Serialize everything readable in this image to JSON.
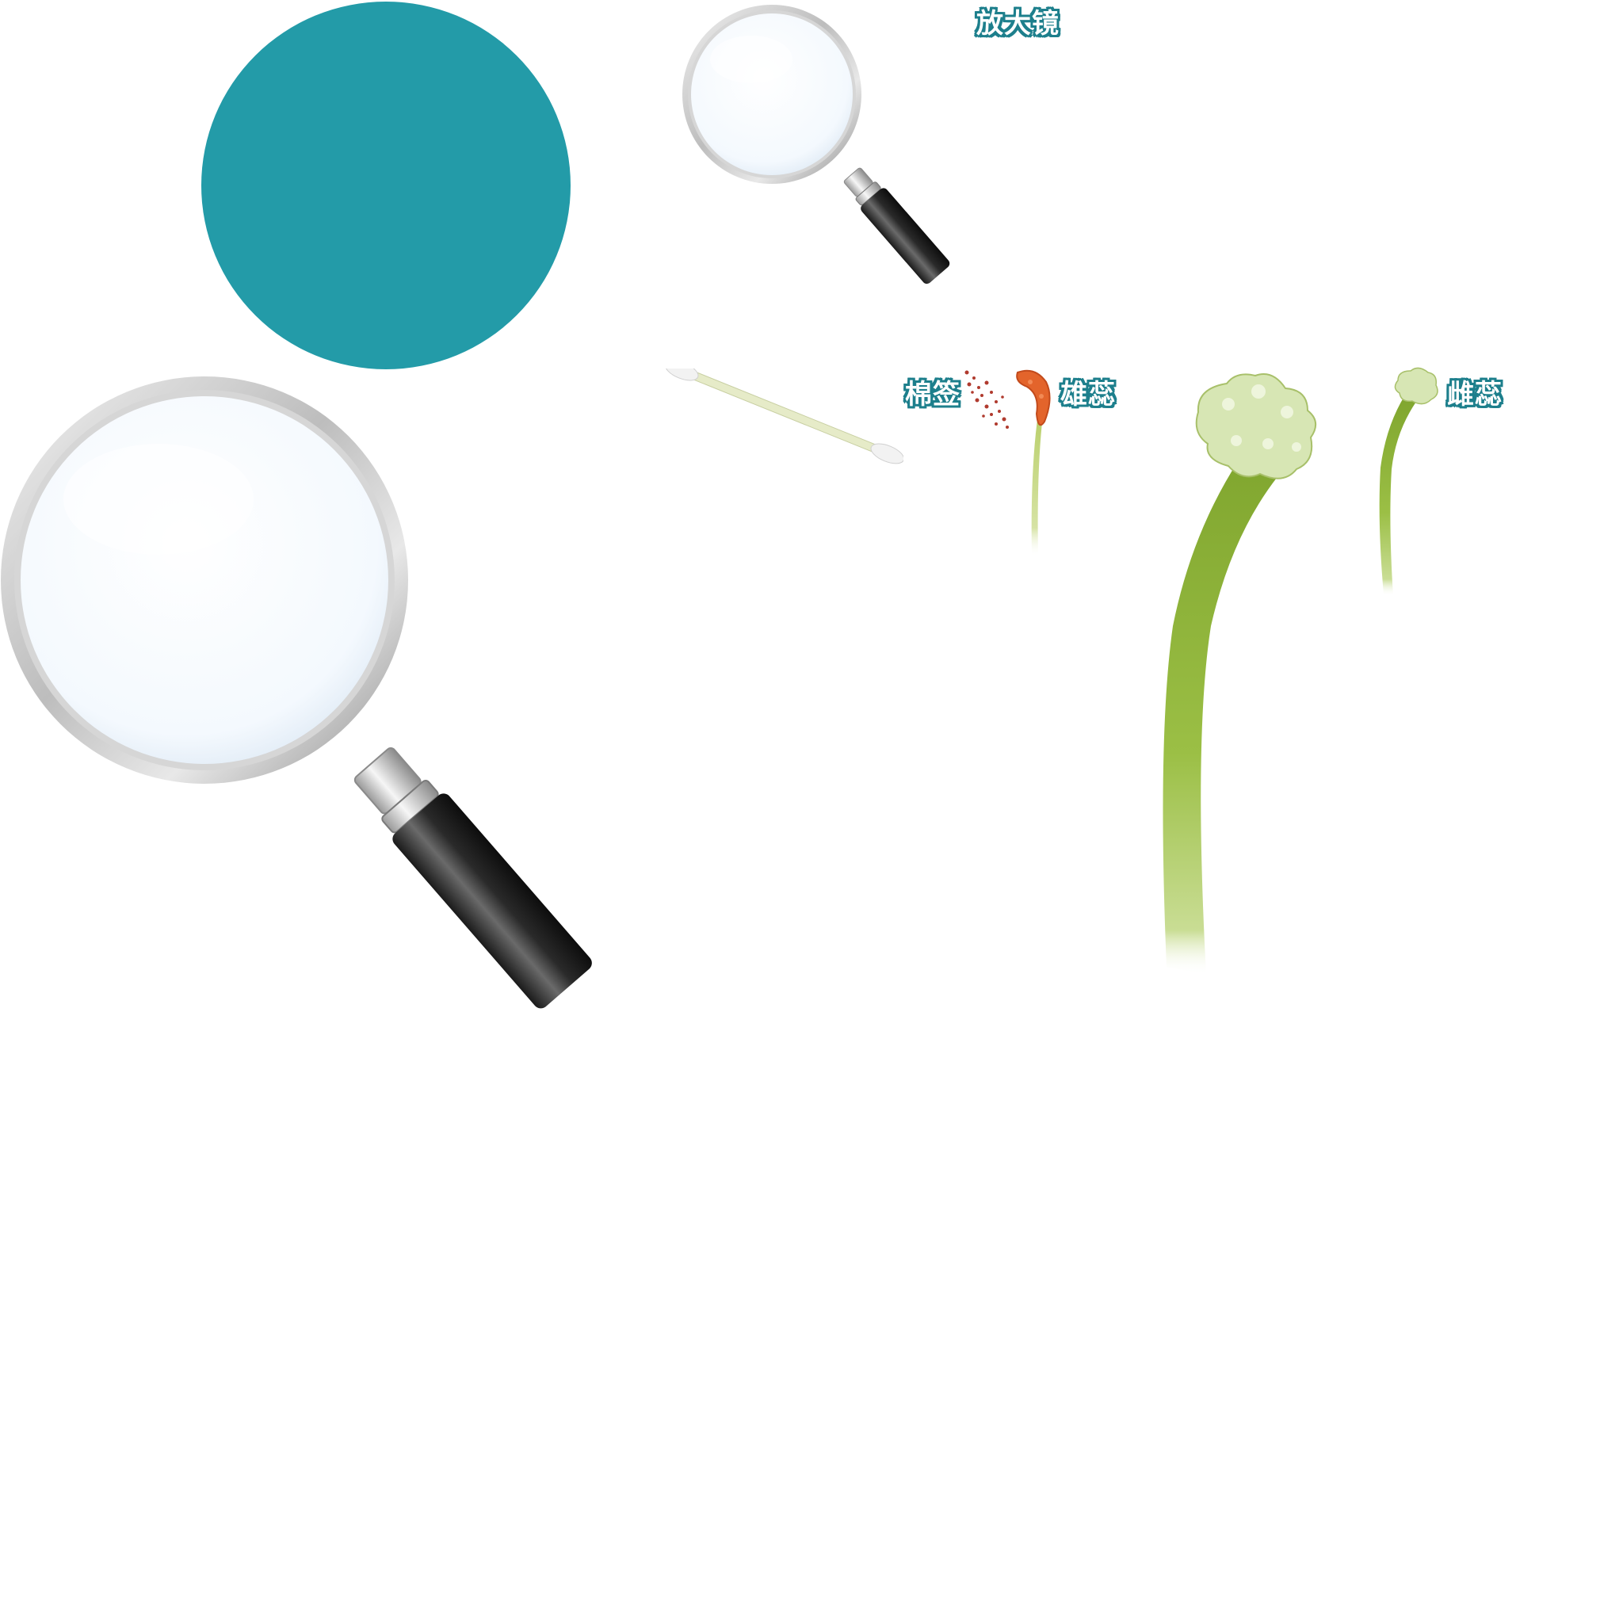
{
  "scene": {
    "background_color": "#ffffff",
    "accent_color": "#239ba8",
    "label_outline_color": "#1d7f8c"
  },
  "labels": {
    "magnifier": "放大镜",
    "cotton_swab": "棉签",
    "stamen": "雄蕊",
    "pistil": "雌蕊"
  },
  "assets": {
    "teal_circle": "teal-circle",
    "big_magnifier": "magnifying-glass-icon",
    "small_magnifier": "magnifying-glass-icon",
    "cotton_swab": "cotton-swab-icon",
    "stamen": "stamen-icon",
    "pistil_large": "pistil-icon",
    "pistil_small": "pistil-icon"
  }
}
